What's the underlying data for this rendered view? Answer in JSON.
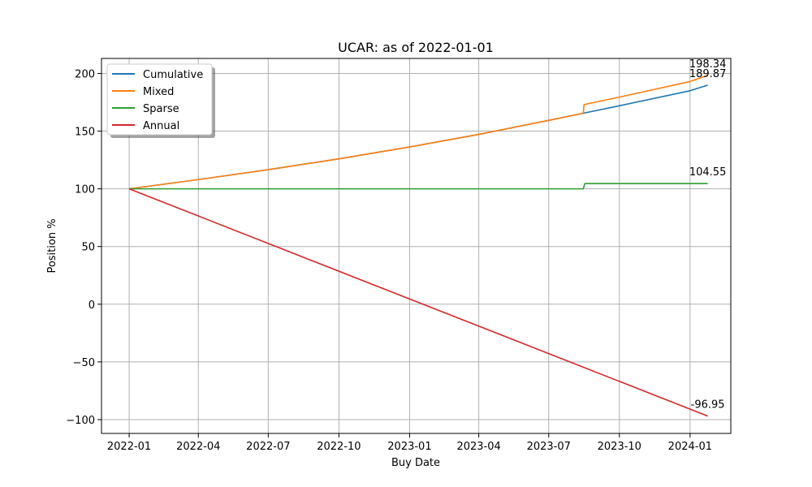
{
  "chart_data": {
    "type": "line",
    "title": "UCAR: as of 2022-01-01",
    "xlabel": "Buy Date",
    "ylabel": "Position %",
    "x_ticks": [
      "2022-01",
      "2022-04",
      "2022-07",
      "2022-10",
      "2023-01",
      "2023-04",
      "2023-07",
      "2023-10",
      "2024-01"
    ],
    "y_ticks": [
      -100,
      -50,
      0,
      50,
      100,
      150,
      200
    ],
    "xlim": [
      "2021-11-26",
      "2024-02-23"
    ],
    "ylim": [
      -112,
      213
    ],
    "grid": true,
    "legend_position": "top-left",
    "series": [
      {
        "name": "Cumulative",
        "color": "#1f77b4",
        "points": [
          {
            "x": "2022-01-01",
            "y": 100
          },
          {
            "x": "2022-04-01",
            "y": 108
          },
          {
            "x": "2022-07-01",
            "y": 116.6
          },
          {
            "x": "2022-10-01",
            "y": 126
          },
          {
            "x": "2023-01-01",
            "y": 136.3
          },
          {
            "x": "2023-04-01",
            "y": 147.2
          },
          {
            "x": "2023-07-01",
            "y": 159.3
          },
          {
            "x": "2023-08-15",
            "y": 165.5
          },
          {
            "x": "2023-10-01",
            "y": 172
          },
          {
            "x": "2024-01-01",
            "y": 185
          },
          {
            "x": "2024-01-24",
            "y": 189.87
          }
        ],
        "end_label": "189.87"
      },
      {
        "name": "Mixed",
        "color": "#ff7f0e",
        "points": [
          {
            "x": "2022-01-01",
            "y": 100
          },
          {
            "x": "2022-04-01",
            "y": 108
          },
          {
            "x": "2022-07-01",
            "y": 116.6
          },
          {
            "x": "2022-10-01",
            "y": 126
          },
          {
            "x": "2023-01-01",
            "y": 136.3
          },
          {
            "x": "2023-04-01",
            "y": 147.2
          },
          {
            "x": "2023-07-01",
            "y": 159.3
          },
          {
            "x": "2023-08-15",
            "y": 165.5
          },
          {
            "x": "2023-08-16",
            "y": 173
          },
          {
            "x": "2023-10-01",
            "y": 179.5
          },
          {
            "x": "2024-01-01",
            "y": 193
          },
          {
            "x": "2024-01-24",
            "y": 198.34
          }
        ],
        "end_label": "198.34"
      },
      {
        "name": "Sparse",
        "color": "#2ca02c",
        "points": [
          {
            "x": "2022-01-01",
            "y": 100
          },
          {
            "x": "2023-08-15",
            "y": 100
          },
          {
            "x": "2023-08-17",
            "y": 104.55
          },
          {
            "x": "2024-01-24",
            "y": 104.55
          }
        ],
        "end_label": "104.55"
      },
      {
        "name": "Annual",
        "color": "#d62728",
        "points": [
          {
            "x": "2022-01-01",
            "y": 100
          },
          {
            "x": "2024-01-24",
            "y": -96.95
          }
        ],
        "end_label": "-96.95"
      }
    ]
  }
}
